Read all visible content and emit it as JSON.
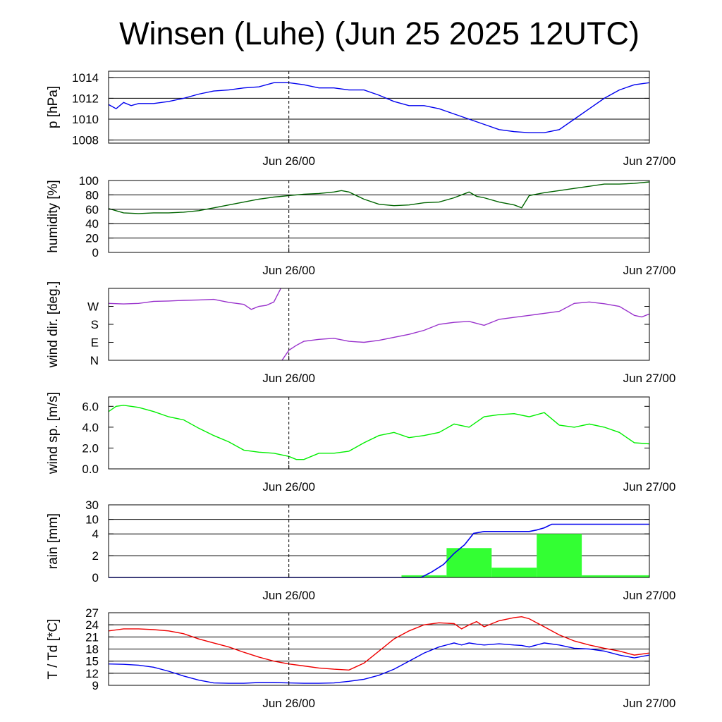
{
  "title": "Winsen (Luhe) (Jun 25 2025 12UTC)",
  "x_tick_labels": [
    "Jun 26/00",
    "Jun 27/00"
  ],
  "chart_data": [
    {
      "type": "line",
      "ylabel": "p [hPa]",
      "ylim": [
        1007.7,
        1014.6
      ],
      "yticks": [
        1008,
        1010,
        1012,
        1014
      ],
      "ytick_labels": [
        "1008",
        "1010",
        "1012",
        "1014"
      ],
      "grid": true,
      "x_hours": [
        0,
        0.5,
        1,
        1.5,
        2,
        3,
        4,
        5,
        6,
        7,
        8,
        9,
        10,
        11,
        12,
        13,
        14,
        15,
        16,
        17,
        18,
        19,
        20,
        21,
        22,
        23,
        24,
        25,
        26,
        27,
        28,
        29,
        30,
        31,
        32,
        33,
        34,
        35,
        36
      ],
      "series": [
        {
          "color": "#0000ee",
          "values": [
            1011.4,
            1011.0,
            1011.6,
            1011.3,
            1011.5,
            1011.5,
            1011.7,
            1012.0,
            1012.4,
            1012.7,
            1012.8,
            1013.0,
            1013.1,
            1013.5,
            1013.5,
            1013.3,
            1013.0,
            1013.0,
            1012.8,
            1012.8,
            1012.3,
            1011.7,
            1011.3,
            1011.3,
            1011.0,
            1010.5,
            1010.0,
            1009.5,
            1009.0,
            1008.8,
            1008.7,
            1008.7,
            1009.0,
            1010.0,
            1011.0,
            1012.0,
            1012.8,
            1013.3,
            1013.5
          ]
        }
      ]
    },
    {
      "type": "line",
      "ylabel": "humidity [%]",
      "ylim": [
        0,
        100
      ],
      "yticks": [
        0,
        20,
        40,
        60,
        80,
        100
      ],
      "ytick_labels": [
        "0",
        "20",
        "40",
        "60",
        "80",
        "100"
      ],
      "grid": true,
      "x_hours": [
        0,
        1,
        2,
        3,
        4,
        5,
        6,
        7,
        8,
        9,
        10,
        11,
        12,
        13,
        14,
        15,
        15.5,
        16,
        17,
        18,
        19,
        20,
        21,
        22,
        23,
        24,
        24.5,
        25,
        26,
        27,
        27.5,
        28,
        29,
        30,
        31,
        32,
        33,
        34,
        35,
        36
      ],
      "series": [
        {
          "color": "#006400",
          "values": [
            61,
            55,
            54,
            55,
            55,
            56,
            58,
            62,
            66,
            70,
            74,
            77,
            79,
            81,
            82,
            84,
            86,
            84,
            74,
            67,
            65,
            66,
            69,
            70,
            76,
            84,
            78,
            76,
            70,
            66,
            62,
            79,
            83,
            86,
            89,
            92,
            95,
            95,
            96,
            98
          ]
        }
      ]
    },
    {
      "type": "line",
      "ylabel": "wind dir. [deg.]",
      "ylim": [
        0,
        360
      ],
      "yticks": [
        0,
        90,
        180,
        270
      ],
      "ytick_labels": [
        "N",
        "E",
        "S",
        "W"
      ],
      "grid": false,
      "x_hours": [
        0,
        1,
        2,
        3,
        4,
        5,
        6,
        7,
        8,
        9,
        9.5,
        10,
        10.5,
        11,
        11.5,
        11.5,
        12,
        12.5,
        13,
        14,
        15,
        16,
        17,
        18,
        19,
        20,
        21,
        22,
        23,
        24,
        25,
        26,
        27,
        28,
        29,
        30,
        31,
        32,
        33,
        34,
        35,
        35.5,
        36
      ],
      "series": [
        {
          "color": "#9932cc",
          "values": [
            285,
            282,
            285,
            295,
            297,
            300,
            302,
            305,
            290,
            280,
            255,
            270,
            275,
            292,
            365,
            -5,
            50,
            75,
            95,
            105,
            110,
            95,
            90,
            100,
            115,
            130,
            150,
            180,
            190,
            195,
            175,
            205,
            215,
            225,
            235,
            245,
            285,
            292,
            283,
            270,
            225,
            217,
            232
          ]
        }
      ]
    },
    {
      "type": "line",
      "ylabel": "wind sp. [m/s]",
      "ylim": [
        0,
        6.9
      ],
      "yticks": [
        0,
        2,
        4,
        6
      ],
      "ytick_labels": [
        "0.0",
        "2.0",
        "4.0",
        "6.0"
      ],
      "grid": false,
      "x_hours": [
        0,
        0.5,
        1,
        2,
        3,
        4,
        5,
        6,
        7,
        8,
        9,
        10,
        11,
        12,
        12.5,
        13,
        14,
        15,
        16,
        17,
        18,
        19,
        20,
        21,
        22,
        23,
        24,
        25,
        26,
        27,
        28,
        29,
        30,
        31,
        32,
        33,
        34,
        35,
        36
      ],
      "series": [
        {
          "color": "#00ee00",
          "values": [
            5.5,
            6.0,
            6.1,
            5.9,
            5.5,
            5.0,
            4.7,
            3.9,
            3.2,
            2.6,
            1.8,
            1.6,
            1.5,
            1.2,
            0.9,
            0.9,
            1.5,
            1.5,
            1.7,
            2.5,
            3.2,
            3.5,
            3.0,
            3.2,
            3.5,
            4.3,
            4.0,
            5.0,
            5.2,
            5.3,
            5.0,
            5.4,
            4.2,
            4.0,
            4.3,
            4.0,
            3.5,
            2.5,
            2.4
          ]
        }
      ]
    },
    {
      "type": "bar",
      "ylabel": "rain [mm]",
      "scale": "nonlinear",
      "ylim": [
        0,
        30
      ],
      "yticks": [
        0,
        2,
        4,
        10,
        30
      ],
      "ytick_labels": [
        "0",
        "2",
        "4",
        "10",
        "30"
      ],
      "grid": true,
      "bars": [
        {
          "from_hour": 19.5,
          "to_hour": 22.5,
          "value": 0.2
        },
        {
          "from_hour": 22.5,
          "to_hour": 25.5,
          "value": 2.7
        },
        {
          "from_hour": 25.5,
          "to_hour": 28.5,
          "value": 0.9
        },
        {
          "from_hour": 28.5,
          "to_hour": 31.5,
          "value": 4.0
        },
        {
          "from_hour": 31.5,
          "to_hour": 36,
          "value": 0.2
        }
      ],
      "bar_color": "#33ff33",
      "cumulative": {
        "color": "#0000ee",
        "x_hours": [
          0,
          20.8,
          21.5,
          22.3,
          23,
          23.7,
          24.3,
          25,
          26,
          27,
          28,
          28.5,
          29,
          29.5,
          30,
          33,
          36
        ],
        "values": [
          0,
          0,
          0.5,
          1.2,
          2.2,
          3.0,
          4.2,
          5.0,
          5.0,
          5.0,
          5.0,
          5.6,
          6.5,
          8.0,
          8.0,
          8.0,
          8.0
        ]
      }
    },
    {
      "type": "line",
      "ylabel": "T / Td [*C]",
      "ylim": [
        9,
        27
      ],
      "yticks": [
        9,
        12,
        15,
        18,
        21,
        24,
        27
      ],
      "ytick_labels": [
        "9",
        "12",
        "15",
        "18",
        "21",
        "24",
        "27"
      ],
      "grid": true,
      "x_hours": [
        0,
        1,
        2,
        3,
        4,
        5,
        6,
        7,
        8,
        9,
        10,
        11,
        12,
        13,
        14,
        15,
        16,
        17,
        18,
        19,
        20,
        21,
        22,
        23,
        23.5,
        24,
        24.5,
        25,
        26,
        27,
        27.5,
        28,
        29,
        30,
        31,
        32,
        33,
        34,
        35,
        36
      ],
      "series": [
        {
          "name": "T",
          "color": "#ee0000",
          "values": [
            22.5,
            23.0,
            23.0,
            22.8,
            22.5,
            21.8,
            20.5,
            19.5,
            18.5,
            17.2,
            16.0,
            15.0,
            14.3,
            13.8,
            13.3,
            13.0,
            12.8,
            14.5,
            17.5,
            20.5,
            22.5,
            24.0,
            24.5,
            24.3,
            23.0,
            24.0,
            24.8,
            23.5,
            25.0,
            25.8,
            26.0,
            25.5,
            23.5,
            21.5,
            20.0,
            19.0,
            18.2,
            17.5,
            16.5,
            17.0
          ]
        },
        {
          "name": "Td",
          "color": "#0000ee",
          "values": [
            14.3,
            14.2,
            14.0,
            13.5,
            12.5,
            11.3,
            10.3,
            9.6,
            9.5,
            9.5,
            9.7,
            9.7,
            9.6,
            9.5,
            9.5,
            9.6,
            10.0,
            10.5,
            11.5,
            13.0,
            15.0,
            17.0,
            18.5,
            19.5,
            19.0,
            19.5,
            19.2,
            19.0,
            19.3,
            19.0,
            18.9,
            18.5,
            19.5,
            19.0,
            18.2,
            18.0,
            17.5,
            16.5,
            15.8,
            16.5
          ]
        }
      ]
    }
  ]
}
